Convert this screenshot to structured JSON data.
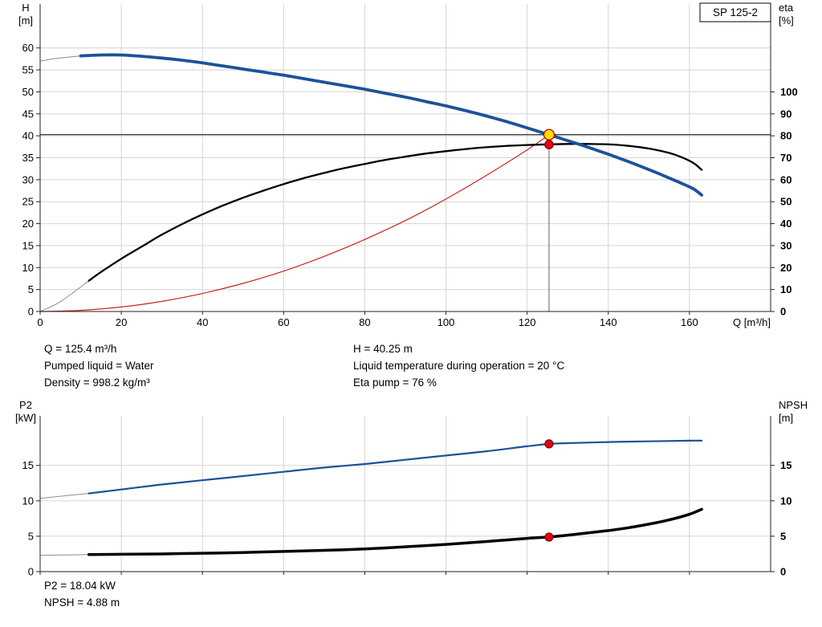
{
  "annotations": {
    "q": "Q = 125.4 m³/h",
    "h": "H = 40.25 m",
    "pumped_liquid": "Pumped liquid = Water",
    "temperature": "Liquid temperature during operation = 20 °C",
    "density": "Density = 998.2 kg/m³",
    "eta_pump": "Eta pump = 76 %",
    "p2": "P2 = 18.04 kW",
    "npsh": "NPSH = 4.88 m"
  },
  "colors": {
    "curve_blue": "#1b5399",
    "curve_black": "#000000",
    "curve_red": "#cc2222",
    "lead_in_gray": "#8c8c8c",
    "grid": "#d4d4d4",
    "axis": "#222222",
    "marker_yellow": "#ffdf00",
    "marker_red": "#e30613"
  },
  "chart_data": [
    {
      "type": "line",
      "name": "head-efficiency-chart",
      "title": "SP 125-2",
      "grid": true,
      "legend": "none",
      "x_axis": {
        "label": "Q [m³/h]",
        "min": 0,
        "max": 180,
        "labels_visible": true,
        "ticks": [
          0,
          20,
          40,
          60,
          80,
          100,
          120,
          140,
          160
        ]
      },
      "y_left": {
        "label_lines": [
          "H",
          "[m]"
        ],
        "min": 0,
        "max": 70,
        "ticks": [
          0,
          5,
          10,
          15,
          20,
          25,
          30,
          35,
          40,
          45,
          50,
          55,
          60
        ]
      },
      "y_right": {
        "label_lines": [
          "eta",
          "[%]"
        ],
        "min": 0,
        "max": 140,
        "ticks": [
          0,
          10,
          20,
          30,
          40,
          50,
          60,
          70,
          80,
          90,
          100
        ]
      },
      "crosshair": {
        "q": 125.4,
        "h": 40.25
      },
      "series": [
        {
          "name": "system-curve",
          "axis": "left",
          "color": "#cc2222",
          "width": 1.2,
          "points": [
            [
              0,
              0
            ],
            [
              10,
              0.26
            ],
            [
              20,
              1.02
            ],
            [
              30,
              2.3
            ],
            [
              40,
              4.1
            ],
            [
              50,
              6.4
            ],
            [
              60,
              9.2
            ],
            [
              70,
              12.55
            ],
            [
              80,
              16.4
            ],
            [
              90,
              20.7
            ],
            [
              100,
              25.6
            ],
            [
              110,
              31.0
            ],
            [
              120,
              36.8
            ],
            [
              125.4,
              40.25
            ]
          ]
        },
        {
          "name": "hq-lead-in",
          "axis": "left",
          "color": "#8c8c8c",
          "width": 1,
          "points": [
            [
              0,
              57.0
            ],
            [
              4,
              57.6
            ],
            [
              10,
              58.2
            ]
          ]
        },
        {
          "name": "eta-lead-in",
          "axis": "right",
          "color": "#8c8c8c",
          "width": 1,
          "points": [
            [
              0,
              0
            ],
            [
              5,
              4.5
            ],
            [
              12,
              14
            ]
          ]
        },
        {
          "name": "eta-curve",
          "axis": "right",
          "color": "#000000",
          "width": 2.3,
          "points": [
            [
              12,
              14
            ],
            [
              15,
              18
            ],
            [
              20,
              24
            ],
            [
              25,
              29.5
            ],
            [
              30,
              35
            ],
            [
              35,
              39.8
            ],
            [
              40,
              44.2
            ],
            [
              45,
              48.2
            ],
            [
              50,
              51.8
            ],
            [
              55,
              55
            ],
            [
              60,
              58
            ],
            [
              65,
              60.7
            ],
            [
              70,
              63.1
            ],
            [
              75,
              65.3
            ],
            [
              80,
              67.2
            ],
            [
              85,
              69
            ],
            [
              90,
              70.5
            ],
            [
              95,
              71.9
            ],
            [
              100,
              73
            ],
            [
              105,
              74
            ],
            [
              110,
              74.8
            ],
            [
              115,
              75.4
            ],
            [
              120,
              75.8
            ],
            [
              125.4,
              76.1
            ],
            [
              130,
              76.3
            ],
            [
              135,
              76.3
            ],
            [
              140,
              76.1
            ],
            [
              145,
              75.4
            ],
            [
              150,
              74.2
            ],
            [
              155,
              72.2
            ],
            [
              158,
              70.3
            ],
            [
              161,
              67.6
            ],
            [
              163,
              64.5
            ]
          ]
        },
        {
          "name": "hq-curve",
          "axis": "left",
          "color": "#1b5399",
          "width": 3.8,
          "points": [
            [
              10,
              58.2
            ],
            [
              15,
              58.4
            ],
            [
              20,
              58.4
            ],
            [
              25,
              58.1
            ],
            [
              30,
              57.7
            ],
            [
              35,
              57.2
            ],
            [
              40,
              56.6
            ],
            [
              45,
              55.9
            ],
            [
              50,
              55.2
            ],
            [
              55,
              54.5
            ],
            [
              60,
              53.8
            ],
            [
              65,
              53.0
            ],
            [
              70,
              52.2
            ],
            [
              75,
              51.4
            ],
            [
              80,
              50.6
            ],
            [
              85,
              49.7
            ],
            [
              90,
              48.8
            ],
            [
              95,
              47.8
            ],
            [
              100,
              46.8
            ],
            [
              105,
              45.7
            ],
            [
              110,
              44.5
            ],
            [
              115,
              43.2
            ],
            [
              120,
              41.8
            ],
            [
              125.4,
              40.25
            ],
            [
              130,
              38.9
            ],
            [
              135,
              37.4
            ],
            [
              140,
              35.8
            ],
            [
              145,
              34.1
            ],
            [
              150,
              32.3
            ],
            [
              155,
              30.4
            ],
            [
              158,
              29.2
            ],
            [
              161,
              27.9
            ],
            [
              163,
              26.5
            ]
          ]
        }
      ],
      "markers": [
        {
          "name": "duty-point-head",
          "axis": "left",
          "x": 125.4,
          "y": 40.25,
          "r": 6.5,
          "fill": "#ffdf00",
          "stroke": "#c00000"
        },
        {
          "name": "duty-point-eta",
          "axis": "right",
          "x": 125.4,
          "y": 76,
          "r": 5.2,
          "fill": "#e30613",
          "stroke": "#8a0000"
        }
      ]
    },
    {
      "type": "line",
      "name": "power-npsh-chart",
      "title": "",
      "grid": true,
      "legend": "none",
      "x_axis": {
        "label": "",
        "min": 0,
        "max": 180,
        "labels_visible": false,
        "ticks": [
          0,
          20,
          40,
          60,
          80,
          100,
          120,
          140,
          160
        ]
      },
      "y_left": {
        "label_lines": [
          "P2",
          "[kW]"
        ],
        "min": 0,
        "max": 22,
        "ticks": [
          0,
          5,
          10,
          15
        ]
      },
      "y_right": {
        "label_lines": [
          "NPSH",
          "[m]"
        ],
        "min": 0,
        "max": 22,
        "ticks": [
          0,
          5,
          10,
          15
        ]
      },
      "series": [
        {
          "name": "p2-lead-in",
          "axis": "left",
          "color": "#8c8c8c",
          "width": 1,
          "points": [
            [
              0,
              10.35
            ],
            [
              6,
              10.7
            ],
            [
              12,
              11.05
            ]
          ]
        },
        {
          "name": "npsh-lead-in",
          "axis": "right",
          "color": "#8c8c8c",
          "width": 1,
          "points": [
            [
              0,
              2.3
            ],
            [
              6,
              2.35
            ],
            [
              12,
              2.4
            ]
          ]
        },
        {
          "name": "p2-curve",
          "axis": "left",
          "color": "#1b5399",
          "width": 2.2,
          "points": [
            [
              12,
              11.05
            ],
            [
              20,
              11.6
            ],
            [
              30,
              12.3
            ],
            [
              40,
              12.9
            ],
            [
              50,
              13.5
            ],
            [
              60,
              14.1
            ],
            [
              70,
              14.7
            ],
            [
              80,
              15.2
            ],
            [
              90,
              15.8
            ],
            [
              100,
              16.4
            ],
            [
              110,
              17.0
            ],
            [
              120,
              17.7
            ],
            [
              125.4,
              18.04
            ],
            [
              130,
              18.15
            ],
            [
              140,
              18.3
            ],
            [
              150,
              18.4
            ],
            [
              160,
              18.5
            ],
            [
              163,
              18.5
            ]
          ]
        },
        {
          "name": "npsh-curve",
          "axis": "right",
          "color": "#000000",
          "width": 3.5,
          "points": [
            [
              12,
              2.4
            ],
            [
              20,
              2.45
            ],
            [
              30,
              2.5
            ],
            [
              40,
              2.6
            ],
            [
              50,
              2.7
            ],
            [
              60,
              2.85
            ],
            [
              70,
              3.0
            ],
            [
              80,
              3.2
            ],
            [
              90,
              3.5
            ],
            [
              100,
              3.85
            ],
            [
              110,
              4.25
            ],
            [
              120,
              4.7
            ],
            [
              125.4,
              4.88
            ],
            [
              130,
              5.15
            ],
            [
              140,
              5.8
            ],
            [
              145,
              6.2
            ],
            [
              150,
              6.7
            ],
            [
              155,
              7.3
            ],
            [
              160,
              8.1
            ],
            [
              163,
              8.8
            ]
          ]
        }
      ],
      "markers": [
        {
          "name": "duty-point-p2",
          "axis": "left",
          "x": 125.4,
          "y": 18.04,
          "r": 5,
          "fill": "#e30613",
          "stroke": "#8a0000"
        },
        {
          "name": "duty-point-npsh",
          "axis": "right",
          "x": 125.4,
          "y": 4.88,
          "r": 5,
          "fill": "#e30613",
          "stroke": "#8a0000"
        }
      ]
    }
  ]
}
